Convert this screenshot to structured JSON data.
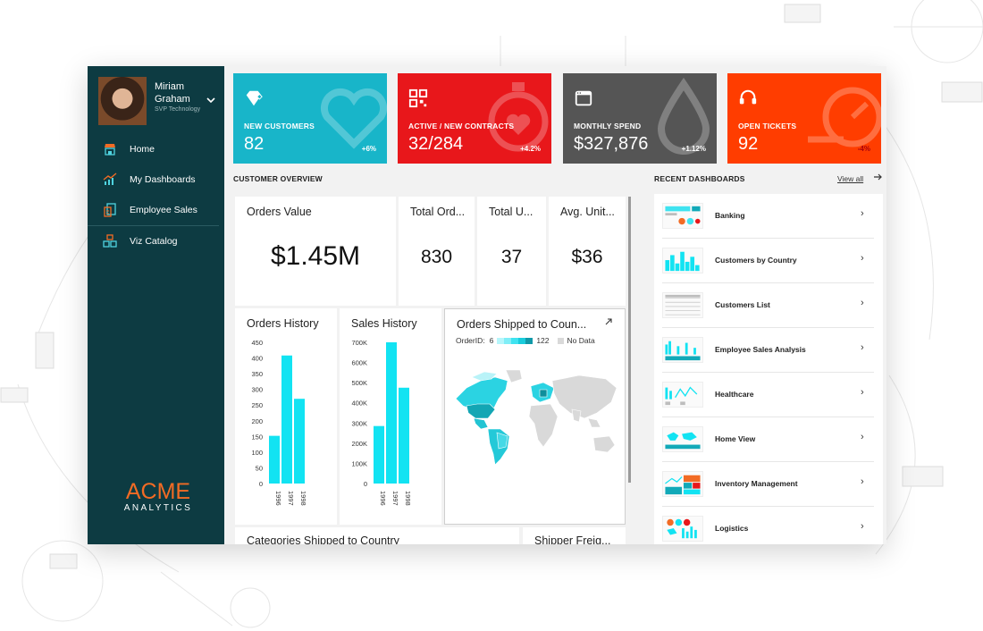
{
  "colors": {
    "sidebar": "#0d3b42",
    "teal": "#18b5c9",
    "red": "#e8171b",
    "gray": "#555555",
    "orange": "#ff3d00",
    "cyan": "#12e3f2",
    "logo_orange": "#f26b24"
  },
  "profile": {
    "name": "Miriam Graham",
    "role": "SVP Technology"
  },
  "nav": [
    {
      "label": "Home",
      "icon": "store-icon"
    },
    {
      "label": "My Dashboards",
      "icon": "chart-trend-icon"
    },
    {
      "label": "Employee Sales",
      "icon": "document-user-icon"
    },
    {
      "label": "Viz Catalog",
      "icon": "blocks-icon"
    }
  ],
  "logo": {
    "top": "ACME",
    "bottom": "ANALYTICS"
  },
  "kpis": [
    {
      "label": "NEW CUSTOMERS",
      "value": "82",
      "delta": "+6%",
      "icon": "diamond-icon",
      "bg_icon": "heart-search-icon"
    },
    {
      "label": "ACTIVE / NEW CONTRACTS",
      "value": "32/284",
      "delta": "+4.2%",
      "icon": "qr-code-icon",
      "bg_icon": "stopwatch-heart-icon"
    },
    {
      "label": "MONTHLY SPEND",
      "value": "$327,876",
      "delta": "+1.12%",
      "icon": "browser-window-icon",
      "bg_icon": "drop-icon"
    },
    {
      "label": "OPEN TICKETS",
      "value": "92",
      "delta": "-4%",
      "icon": "headset-icon",
      "bg_icon": "gauge-icon"
    }
  ],
  "sections": {
    "customer_overview": "CUSTOMER OVERVIEW",
    "recent_dashboards": "RECENT DASHBOARDS",
    "view_all": "View all"
  },
  "metrics": {
    "orders_value": {
      "title": "Orders Value",
      "value": "$1.45M"
    },
    "total_orders": {
      "title": "Total Ord...",
      "value": "830"
    },
    "total_units": {
      "title": "Total U...",
      "value": "37"
    },
    "avg_unit": {
      "title": "Avg. Unit...",
      "value": "$36"
    }
  },
  "orders_history": {
    "title": "Orders History",
    "chart_data": {
      "type": "bar",
      "categories": [
        "1996",
        "1997",
        "1998"
      ],
      "values": [
        152,
        408,
        270
      ],
      "ylim": [
        0,
        450
      ],
      "yticks": [
        "450",
        "400",
        "350",
        "300",
        "250",
        "200",
        "150",
        "100",
        "50",
        "0"
      ]
    }
  },
  "sales_history": {
    "title": "Sales History",
    "chart_data": {
      "type": "bar",
      "categories": [
        "1996",
        "1997",
        "1998"
      ],
      "values": [
        285000,
        700000,
        475000
      ],
      "ylim": [
        0,
        700000
      ],
      "yticks": [
        "700K",
        "600K",
        "500K",
        "400K",
        "300K",
        "200K",
        "100K",
        "0"
      ]
    }
  },
  "map_card": {
    "title": "Orders Shipped to Coun...",
    "legend_field": "OrderID:",
    "legend_min": "6",
    "legend_max": "122",
    "legend_nodata": "No Data"
  },
  "bottom_cards": {
    "categories": "Categories Shipped to Country",
    "shipper": "Shipper Freig..."
  },
  "dashboards": [
    {
      "label": "Banking"
    },
    {
      "label": "Customers by Country"
    },
    {
      "label": "Customers List"
    },
    {
      "label": "Employee Sales Analysis"
    },
    {
      "label": "Healthcare"
    },
    {
      "label": "Home View"
    },
    {
      "label": "Inventory Management"
    },
    {
      "label": "Logistics"
    }
  ]
}
